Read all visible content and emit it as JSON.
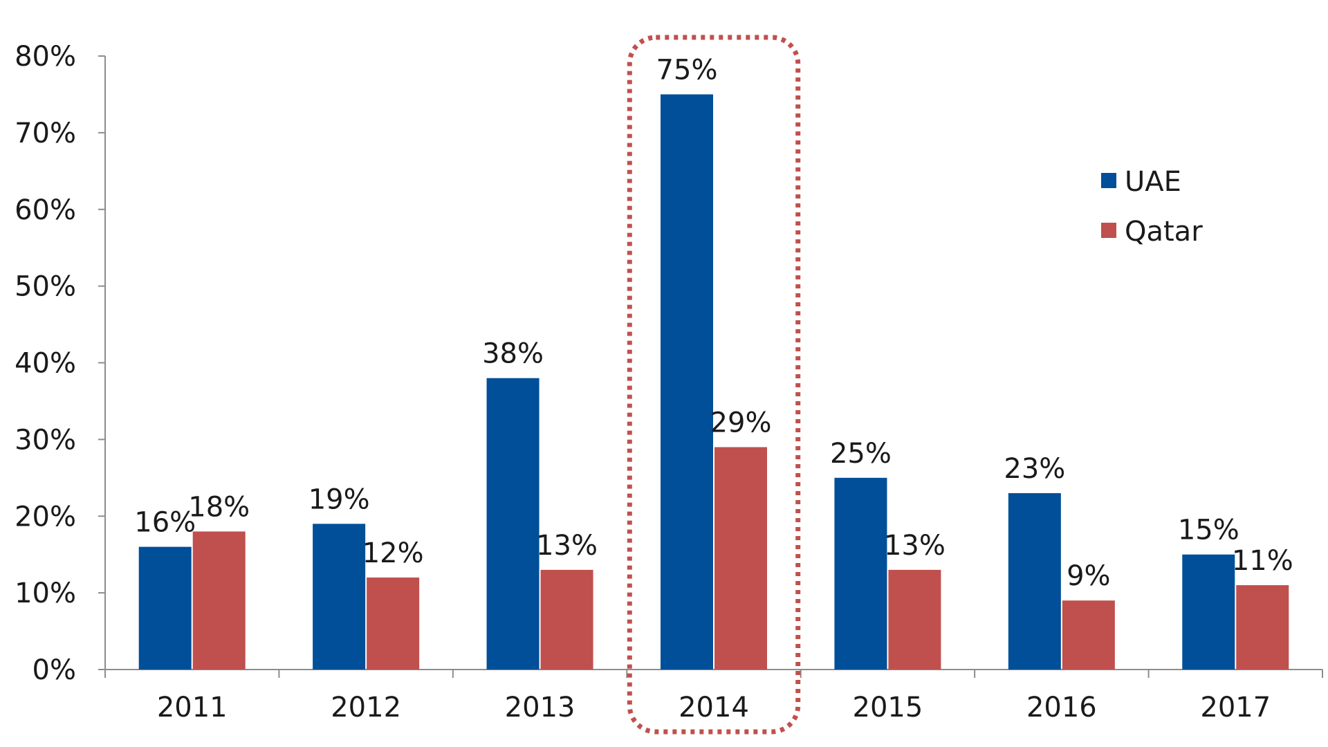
{
  "chart_data": {
    "type": "bar",
    "categories": [
      "2011",
      "2012",
      "2013",
      "2014",
      "2015",
      "2016",
      "2017"
    ],
    "series": [
      {
        "name": "UAE",
        "color": "#004f98",
        "values": [
          16,
          19,
          38,
          75,
          25,
          23,
          15
        ]
      },
      {
        "name": "Qatar",
        "color": "#c0504d",
        "values": [
          18,
          12,
          13,
          29,
          13,
          9,
          11
        ]
      }
    ],
    "data_labels": [
      [
        "16%",
        "19%",
        "38%",
        "75%",
        "25%",
        "23%",
        "15%"
      ],
      [
        "18%",
        "12%",
        "13%",
        "29%",
        "13%",
        "9%",
        "11%"
      ]
    ],
    "yticks": [
      "0%",
      "10%",
      "20%",
      "30%",
      "40%",
      "50%",
      "60%",
      "70%",
      "80%"
    ],
    "ylim": [
      0,
      80
    ],
    "unit": "%",
    "grid": false,
    "legend_position": "right",
    "highlight": {
      "category": "2014",
      "style": "dotted-rounded-box",
      "color": "#c0504d"
    }
  }
}
